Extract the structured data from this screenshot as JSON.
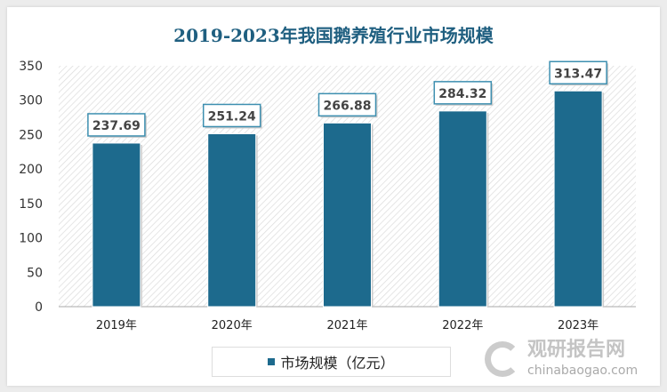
{
  "chart_data": {
    "type": "bar",
    "title": "2019-2023年我国鹅养殖行业市场规模",
    "categories": [
      "2019年",
      "2020年",
      "2021年",
      "2022年",
      "2023年"
    ],
    "series": [
      {
        "name": "市场规模（亿元）",
        "values": [
          237.69,
          251.24,
          266.88,
          284.32,
          313.47
        ]
      }
    ],
    "ylim": [
      0,
      350
    ],
    "yticks": [
      0,
      50,
      100,
      150,
      200,
      250,
      300,
      350
    ],
    "legend": "bottom",
    "grid": false,
    "bar_color": "#1d6a8d"
  },
  "watermark": {
    "cn": "观研报告网",
    "en": "chinabaogao.com"
  }
}
